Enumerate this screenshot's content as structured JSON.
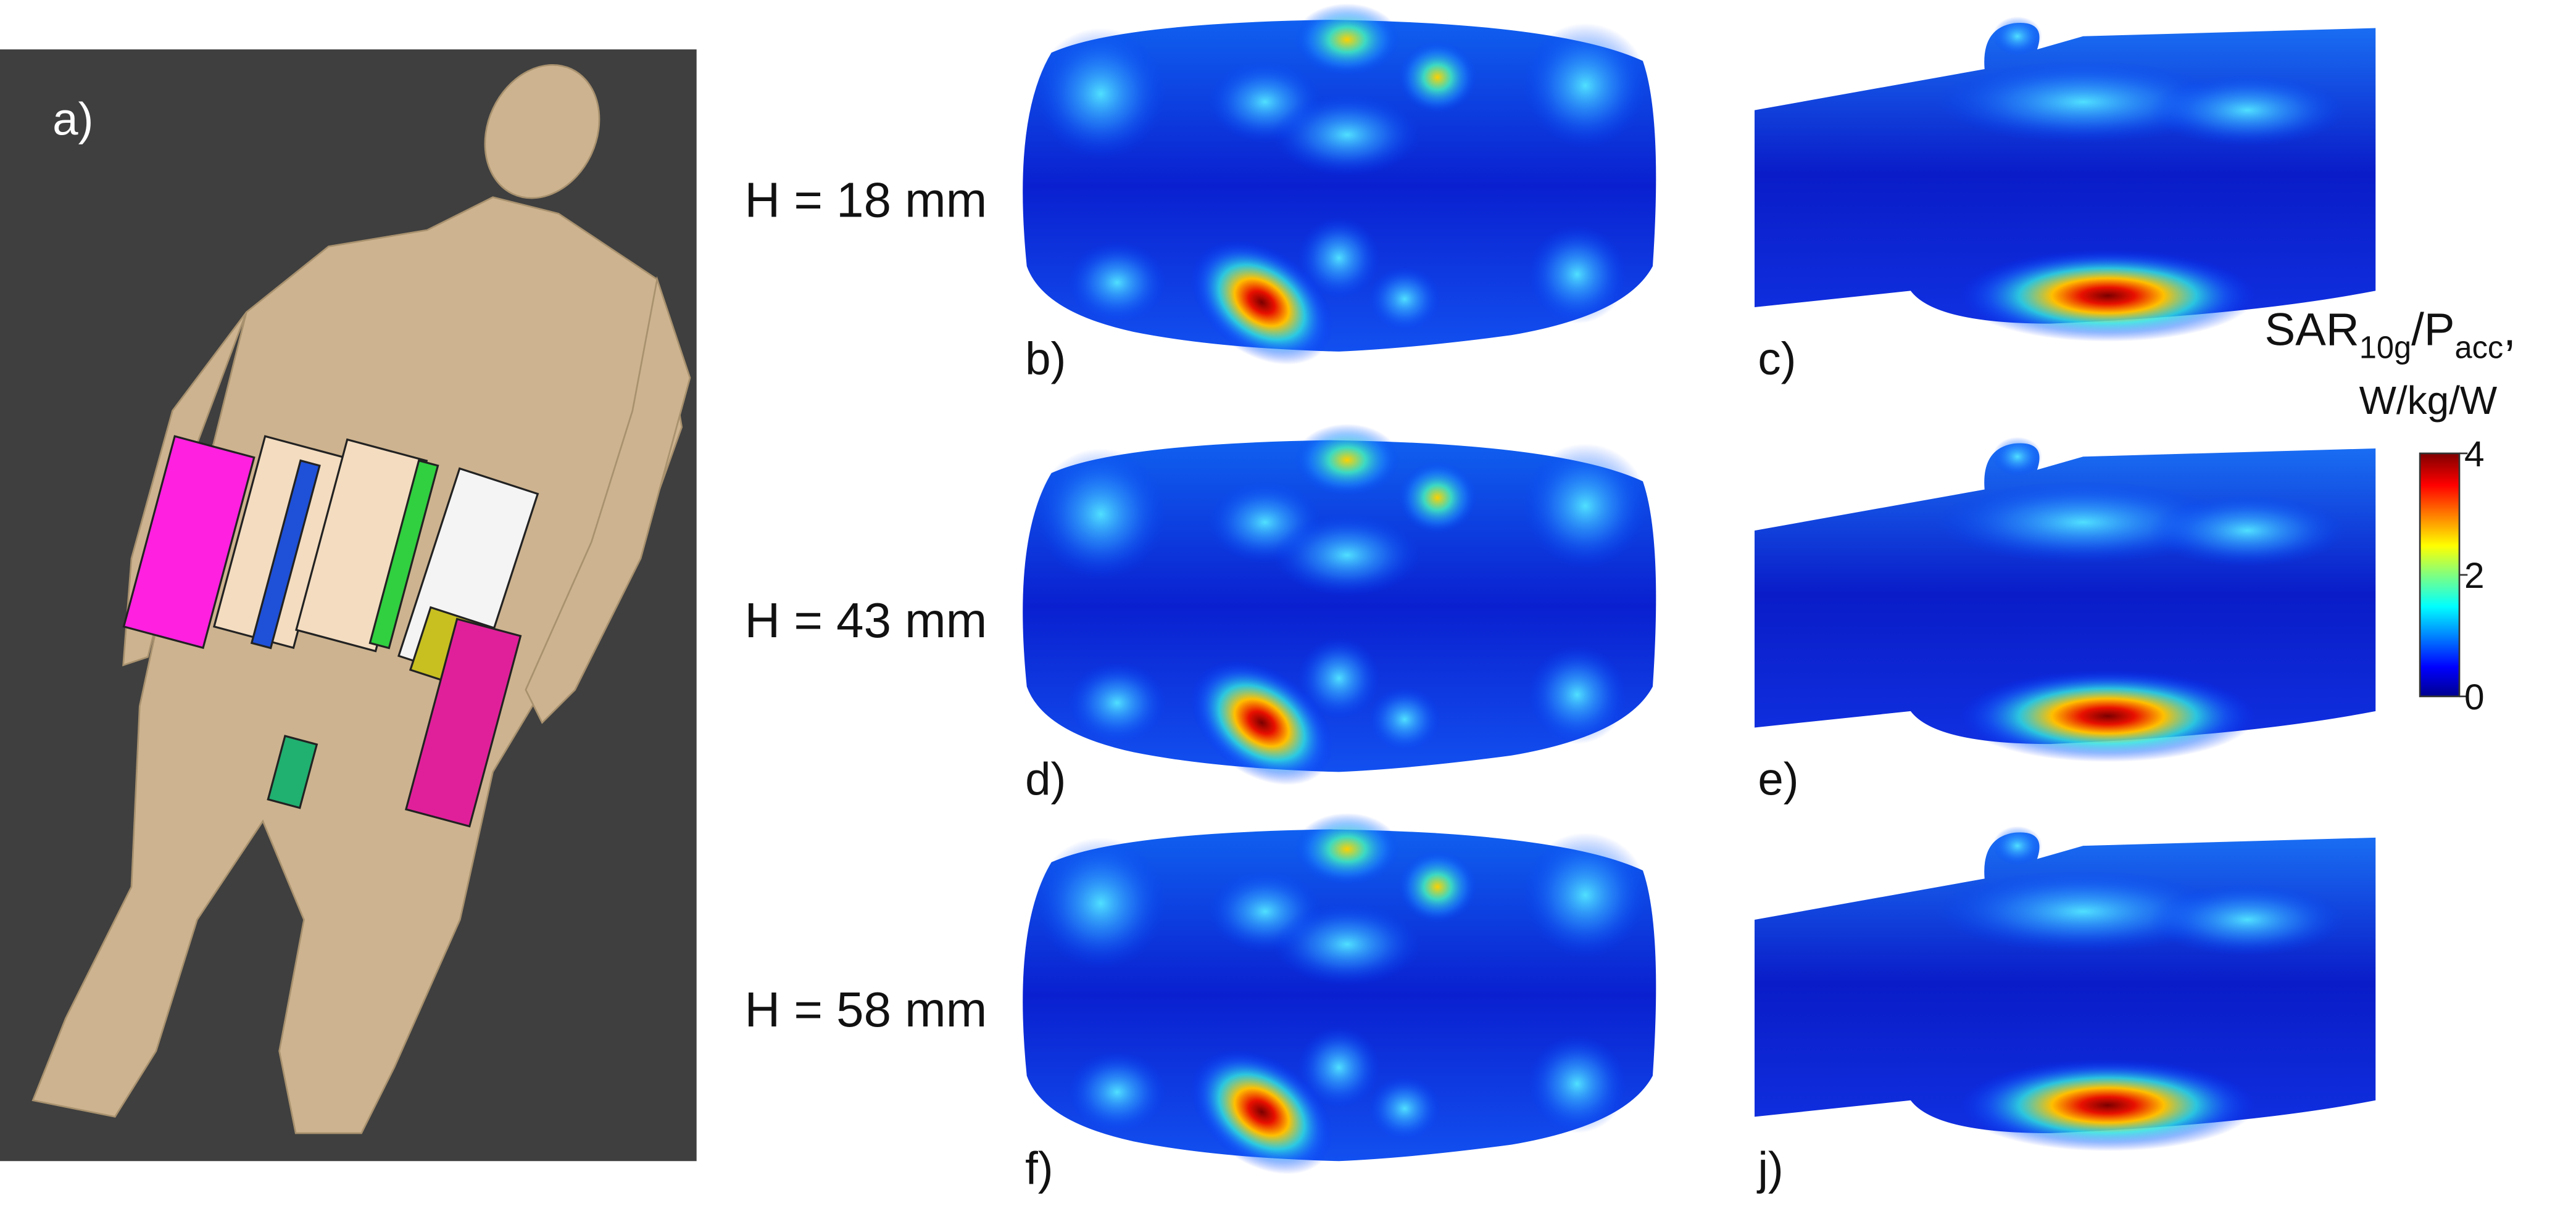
{
  "panel_a": {
    "label": "a)"
  },
  "rows": [
    {
      "height_label": "H = 18 mm",
      "axial_label": "b)",
      "sagittal_label": "c)"
    },
    {
      "height_label": "H = 43 mm",
      "axial_label": "d)",
      "sagittal_label": "e)"
    },
    {
      "height_label": "H = 58 mm",
      "axial_label": "f)",
      "sagittal_label": "j)"
    }
  ],
  "colorbar": {
    "title": {
      "base": "SAR",
      "sub1": "10g",
      "mid": "/P",
      "sub2": "acc",
      "tail": ","
    },
    "unit": "W/kg/W",
    "lim": [
      0,
      4
    ],
    "ticks": [
      0,
      2,
      4
    ]
  }
}
